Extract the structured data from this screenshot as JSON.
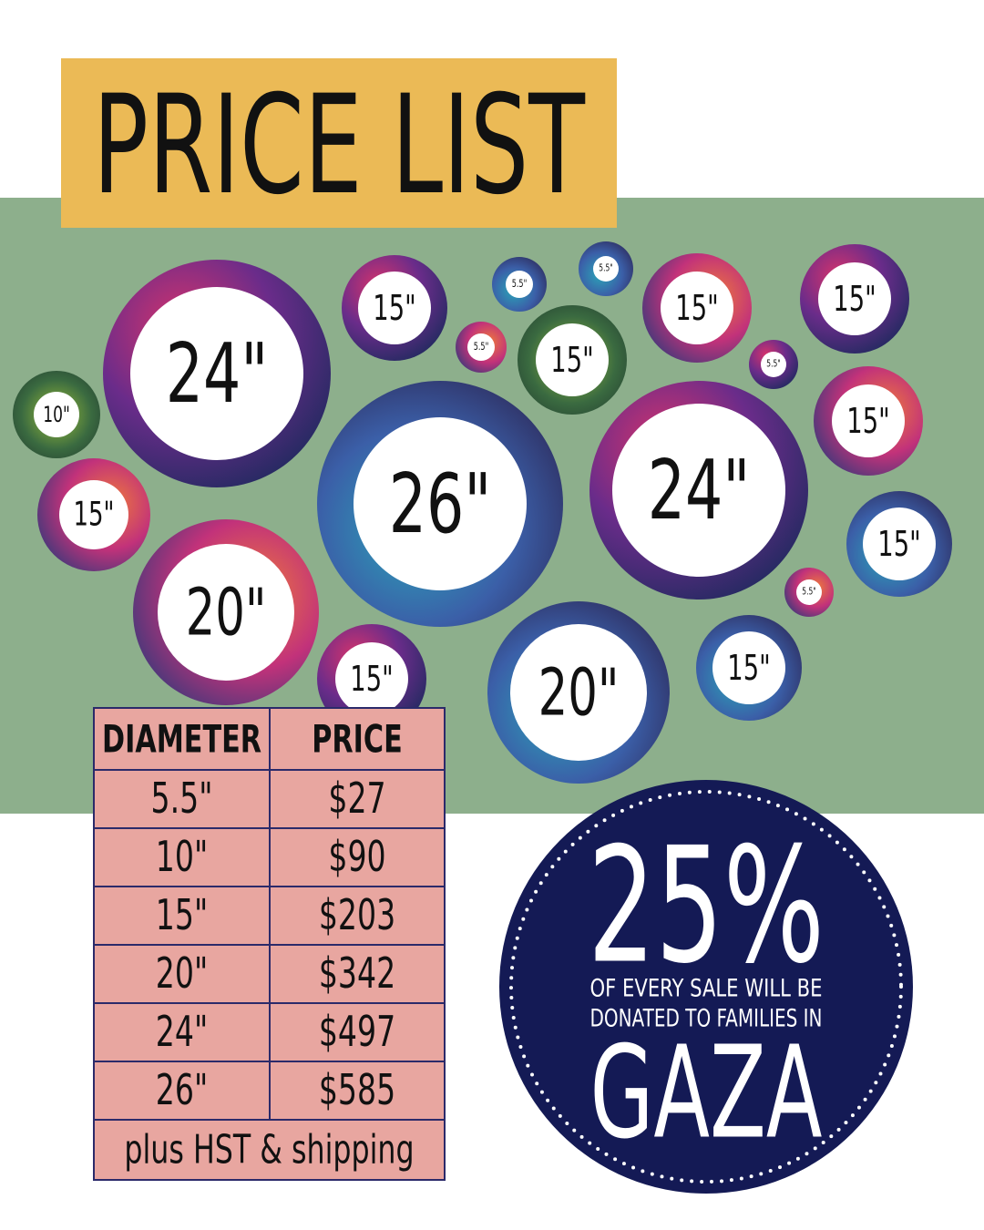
{
  "header": {
    "title": "PRICE LIST"
  },
  "plates": [
    {
      "label": "24\""
    },
    {
      "label": "10\""
    },
    {
      "label": "15\""
    },
    {
      "label": "20\""
    },
    {
      "label": "15\""
    },
    {
      "label": "5.5\""
    },
    {
      "label": "5.5\""
    },
    {
      "label": "5.5\""
    },
    {
      "label": "15\""
    },
    {
      "label": "26\""
    },
    {
      "label": "15\""
    },
    {
      "label": "15\""
    },
    {
      "label": "5.5\""
    },
    {
      "label": "15\""
    },
    {
      "label": "24\""
    },
    {
      "label": "15\""
    },
    {
      "label": "5.5\""
    },
    {
      "label": "15\""
    },
    {
      "label": "15\""
    },
    {
      "label": "20\""
    }
  ],
  "table": {
    "columns": [
      "DIAMETER",
      "PRICE"
    ],
    "rows": [
      [
        "5.5\"",
        "$27"
      ],
      [
        "10\"",
        "$90"
      ],
      [
        "15\"",
        "$203"
      ],
      [
        "20\"",
        "$342"
      ],
      [
        "24\"",
        "$497"
      ],
      [
        "26\"",
        "$585"
      ]
    ],
    "footer": "plus HST & shipping"
  },
  "badge": {
    "percent": "25%",
    "line1": "OF EVERY SALE WILL BE",
    "line2": "DONATED TO FAMILIES IN",
    "place": "GAZA"
  }
}
